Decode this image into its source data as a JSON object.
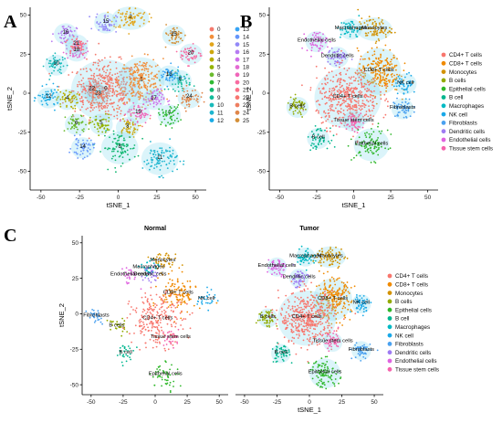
{
  "chart_data": [
    {
      "panel": "A",
      "type": "scatter",
      "title": "",
      "xlabel": "tSNE_1",
      "ylabel": "tSNE_2",
      "xticks": [
        -50,
        -25,
        0,
        25,
        50
      ],
      "yticks": [
        -50,
        -25,
        0,
        25,
        50
      ],
      "xlim": [
        -57,
        57
      ],
      "ylim": [
        -62,
        55
      ],
      "legend_position": "right",
      "legend": [
        "0",
        "1",
        "2",
        "3",
        "4",
        "5",
        "6",
        "7",
        "8",
        "9",
        "10",
        "11",
        "12",
        "13",
        "14",
        "15",
        "16",
        "17",
        "18",
        "19",
        "20",
        "21",
        "22",
        "23",
        "24",
        "25"
      ],
      "cluster_labels": [
        {
          "label": "0",
          "x": -8,
          "y": 2
        },
        {
          "label": "1",
          "x": 15,
          "y": 8
        },
        {
          "label": "2",
          "x": 8,
          "y": 48
        },
        {
          "label": "3",
          "x": 6,
          "y": -22
        },
        {
          "label": "4",
          "x": -33,
          "y": -4
        },
        {
          "label": "5",
          "x": -11,
          "y": -20
        },
        {
          "label": "6",
          "x": -27,
          "y": -20
        },
        {
          "label": "7",
          "x": 33,
          "y": -14
        },
        {
          "label": "8",
          "x": 1,
          "y": -35
        },
        {
          "label": "9",
          "x": 40,
          "y": 8
        },
        {
          "label": "10",
          "x": -40,
          "y": 18
        },
        {
          "label": "11",
          "x": 27,
          "y": -42
        },
        {
          "label": "12",
          "x": -45,
          "y": -3
        },
        {
          "label": "13",
          "x": 33,
          "y": 11
        },
        {
          "label": "14",
          "x": -23,
          "y": -35
        },
        {
          "label": "15",
          "x": -8,
          "y": 45
        },
        {
          "label": "16",
          "x": -34,
          "y": 38
        },
        {
          "label": "17",
          "x": 23,
          "y": -4
        },
        {
          "label": "18",
          "x": -27,
          "y": 27
        },
        {
          "label": "19",
          "x": 13,
          "y": -13
        },
        {
          "label": "20",
          "x": 47,
          "y": 25
        },
        {
          "label": "21",
          "x": -27,
          "y": 31
        },
        {
          "label": "22",
          "x": -17,
          "y": 2
        },
        {
          "label": "23",
          "x": -13,
          "y": -1
        },
        {
          "label": "24",
          "x": 46,
          "y": -3
        },
        {
          "label": "25",
          "x": 36,
          "y": 37
        }
      ]
    },
    {
      "panel": "B",
      "type": "scatter",
      "title": "",
      "xlabel": "tSNE_1",
      "ylabel": "tSNE_2",
      "xticks": [
        -50,
        -25,
        0,
        25,
        50
      ],
      "yticks": [
        -50,
        -25,
        0,
        25,
        50
      ],
      "xlim": [
        -57,
        57
      ],
      "ylim": [
        -62,
        55
      ],
      "legend_position": "right",
      "legend": [
        "CD4+ T cells",
        "CD8+ T cells",
        "Monocytes",
        "B cells",
        "Epithelial cells",
        "B cell",
        "Macrophages",
        "NK cell",
        "Fibroblasts",
        "Dendritic cells",
        "Endothelial cells",
        "Tissue stem cells"
      ],
      "cluster_labels": [
        {
          "label": "Endothelial cells",
          "x": -25,
          "y": 33
        },
        {
          "label": "Macrophages",
          "x": -2,
          "y": 41
        },
        {
          "label": "Monocytes",
          "x": 14,
          "y": 41
        },
        {
          "label": "Dendritic cells",
          "x": -11,
          "y": 23
        },
        {
          "label": "CD8+ T cells",
          "x": 17,
          "y": 14
        },
        {
          "label": "NK cell",
          "x": 35,
          "y": 6
        },
        {
          "label": "CD4+ T cells",
          "x": -4,
          "y": -3
        },
        {
          "label": "B cells",
          "x": -38,
          "y": -9
        },
        {
          "label": "Fibroblasts",
          "x": 33,
          "y": -10
        },
        {
          "label": "Tissue stem cells",
          "x": 0,
          "y": -18
        },
        {
          "label": "B cell",
          "x": -24,
          "y": -29
        },
        {
          "label": "Epithelial cells",
          "x": 12,
          "y": -33
        }
      ]
    },
    {
      "panel": "C-Normal",
      "type": "scatter",
      "title": "Normal",
      "xlabel": "",
      "ylabel": "tSNE_2",
      "xticks": [
        -50,
        -25,
        0,
        25,
        50
      ],
      "yticks": [
        -50,
        -25,
        0,
        25,
        50
      ],
      "xlim": [
        -57,
        57
      ],
      "ylim": [
        -57,
        55
      ],
      "cluster_labels": [
        {
          "label": "Monocytes",
          "x": 6,
          "y": 37
        },
        {
          "label": "Macrophages",
          "x": -5,
          "y": 32
        },
        {
          "label": "Endothelial cells",
          "x": -20,
          "y": 27
        },
        {
          "label": "Dendritic cells",
          "x": -4,
          "y": 27
        },
        {
          "label": "CD8+ T cells",
          "x": 18,
          "y": 14
        },
        {
          "label": "NK cell",
          "x": 40,
          "y": 10
        },
        {
          "label": "Fibroblasts",
          "x": -46,
          "y": -2
        },
        {
          "label": "B cells",
          "x": -30,
          "y": -9
        },
        {
          "label": "CD4+ T cells",
          "x": 2,
          "y": -4
        },
        {
          "label": "Tissue stem cells",
          "x": 12,
          "y": -17
        },
        {
          "label": "B cell",
          "x": -23,
          "y": -28
        },
        {
          "label": "Epithelial cells",
          "x": 8,
          "y": -43
        }
      ]
    },
    {
      "panel": "C-Tumor",
      "type": "scatter",
      "title": "Tumor",
      "xlabel": "tSNE_1",
      "ylabel": "",
      "xticks": [
        -50,
        -25,
        0,
        25,
        50
      ],
      "yticks": [],
      "xlim": [
        -57,
        57
      ],
      "ylim": [
        -57,
        55
      ],
      "legend_position": "right",
      "legend": [
        "CD4+ T cells",
        "CD8+ T cells",
        "Monocytes",
        "B cells",
        "Epithelial cells",
        "B cell",
        "Macrophages",
        "NK cell",
        "Fibroblasts",
        "Dendritic cells",
        "Endothelial cells",
        "Tissue stem cells"
      ],
      "cluster_labels": [
        {
          "label": "Macrophages",
          "x": -3,
          "y": 40
        },
        {
          "label": "Monocytes",
          "x": 16,
          "y": 40
        },
        {
          "label": "Endothelial cells",
          "x": -25,
          "y": 33
        },
        {
          "label": "Dendritic cells",
          "x": -8,
          "y": 25
        },
        {
          "label": "CD8+ T cells",
          "x": 18,
          "y": 10
        },
        {
          "label": "NK cell",
          "x": 40,
          "y": 7
        },
        {
          "label": "B cells",
          "x": -32,
          "y": -3
        },
        {
          "label": "CD4+ T cells",
          "x": -2,
          "y": -3
        },
        {
          "label": "Tissue stem cells",
          "x": 18,
          "y": -20
        },
        {
          "label": "Fibroblasts",
          "x": 40,
          "y": -26
        },
        {
          "label": "B cell",
          "x": -22,
          "y": -28
        },
        {
          "label": "Epithelial cells",
          "x": 12,
          "y": -42
        }
      ]
    }
  ],
  "panel_letters": [
    "A",
    "B",
    "C"
  ],
  "palette": {
    "clusters": [
      "#f47a6d",
      "#f28f3b",
      "#e2a51b",
      "#cda70d",
      "#b5ad00",
      "#93b300",
      "#6bbb2e",
      "#2fb933",
      "#14b873",
      "#13bc9a",
      "#19baba",
      "#1db5cf",
      "#1aace6",
      "#36a4f5",
      "#6596fb",
      "#9389f8",
      "#b57bf2",
      "#d06fea",
      "#e46ad3",
      "#f065b9",
      "#f86ba1",
      "#fb7288",
      "#f8756f",
      "#ee7e60",
      "#e0864a",
      "#d48f37"
    ],
    "cell_types": [
      "#f8766d",
      "#f08a00",
      "#d39200",
      "#93aa00",
      "#2fb72a",
      "#00b68f",
      "#00b9c4",
      "#19a8e8",
      "#4aa1f0",
      "#9e7bf2",
      "#df63e0",
      "#f563ad"
    ]
  },
  "display_names": {
    "tsne1": "tSNE_1",
    "tsne2": "tSNE_2"
  }
}
